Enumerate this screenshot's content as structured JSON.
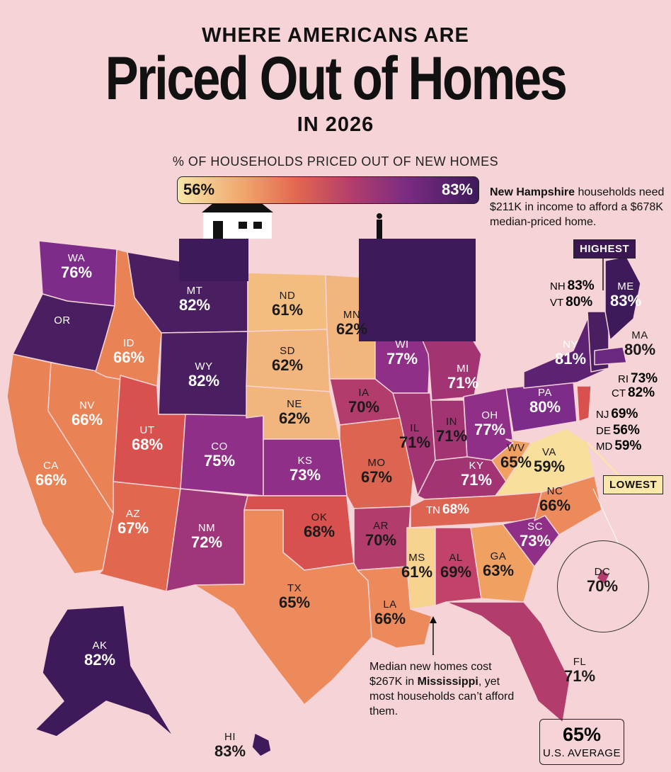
{
  "header": {
    "line1": "WHERE AMERICANS ARE",
    "title": "Priced Out of Homes",
    "line3": "IN 2026"
  },
  "legend": {
    "title": "% OF HOUSEHOLDS PRICED OUT OF NEW HOMES",
    "min_label": "56%",
    "max_label": "83%"
  },
  "annotations": {
    "nh_note_bold": "New Hampshire",
    "nh_note_rest": " households need $211K in income to afford a $678K median-priced home.",
    "ms_note_pre": "Median new homes cost $267K in ",
    "ms_note_bold": "Mississippi",
    "ms_note_post": ", yet most households can’t afford them.",
    "highest_tag": "HIGHEST",
    "lowest_tag": "LOWEST"
  },
  "us_average": {
    "value": "65%",
    "label": "U.S. AVERAGE"
  },
  "colors": {
    "background": "#f6d3d6",
    "low": "#f7e6a6",
    "high": "#3e1a5a"
  },
  "states": [
    {
      "abbr": "WA",
      "pct": "76%"
    },
    {
      "abbr": "OR",
      "pct": ""
    },
    {
      "abbr": "CA",
      "pct": "66%"
    },
    {
      "abbr": "NV",
      "pct": "66%"
    },
    {
      "abbr": "ID",
      "pct": "66%"
    },
    {
      "abbr": "MT",
      "pct": "82%"
    },
    {
      "abbr": "WY",
      "pct": "82%"
    },
    {
      "abbr": "UT",
      "pct": "68%"
    },
    {
      "abbr": "AZ",
      "pct": "67%"
    },
    {
      "abbr": "CO",
      "pct": "75%"
    },
    {
      "abbr": "NM",
      "pct": "72%"
    },
    {
      "abbr": "ND",
      "pct": "61%"
    },
    {
      "abbr": "SD",
      "pct": "62%"
    },
    {
      "abbr": "NE",
      "pct": "62%"
    },
    {
      "abbr": "KS",
      "pct": "73%"
    },
    {
      "abbr": "OK",
      "pct": "68%"
    },
    {
      "abbr": "TX",
      "pct": "65%"
    },
    {
      "abbr": "MN",
      "pct": "62%"
    },
    {
      "abbr": "IA",
      "pct": "70%"
    },
    {
      "abbr": "MO",
      "pct": "67%"
    },
    {
      "abbr": "AR",
      "pct": "70%"
    },
    {
      "abbr": "LA",
      "pct": "66%"
    },
    {
      "abbr": "WI",
      "pct": "77%"
    },
    {
      "abbr": "IL",
      "pct": "71%"
    },
    {
      "abbr": "MI",
      "pct": "71%"
    },
    {
      "abbr": "IN",
      "pct": "71%"
    },
    {
      "abbr": "OH",
      "pct": "77%"
    },
    {
      "abbr": "KY",
      "pct": "71%"
    },
    {
      "abbr": "TN",
      "pct": "68%"
    },
    {
      "abbr": "MS",
      "pct": "61%"
    },
    {
      "abbr": "AL",
      "pct": "69%"
    },
    {
      "abbr": "GA",
      "pct": "63%"
    },
    {
      "abbr": "FL",
      "pct": "71%"
    },
    {
      "abbr": "SC",
      "pct": "73%"
    },
    {
      "abbr": "NC",
      "pct": "66%"
    },
    {
      "abbr": "VA",
      "pct": "59%"
    },
    {
      "abbr": "WV",
      "pct": "65%"
    },
    {
      "abbr": "PA",
      "pct": "80%"
    },
    {
      "abbr": "NY",
      "pct": "81%"
    },
    {
      "abbr": "ME",
      "pct": "83%"
    },
    {
      "abbr": "MA",
      "pct": "80%"
    },
    {
      "abbr": "AK",
      "pct": "82%"
    },
    {
      "abbr": "HI",
      "pct": "83%"
    },
    {
      "abbr": "DC",
      "pct": "70%"
    },
    {
      "abbr": "NH",
      "pct": "83%"
    },
    {
      "abbr": "VT",
      "pct": "80%"
    },
    {
      "abbr": "RI",
      "pct": "73%"
    },
    {
      "abbr": "CT",
      "pct": "82%"
    },
    {
      "abbr": "NJ",
      "pct": "69%"
    },
    {
      "abbr": "DE",
      "pct": "56%"
    },
    {
      "abbr": "MD",
      "pct": "59%"
    }
  ]
}
